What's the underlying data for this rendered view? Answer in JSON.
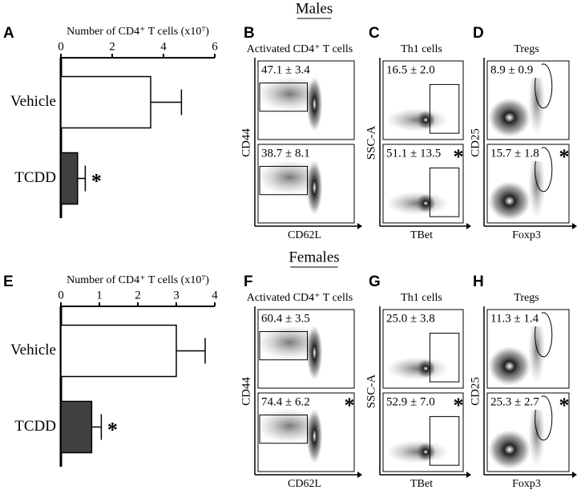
{
  "chart_data": [
    {
      "type": "bar",
      "orientation": "horizontal",
      "letter": "A",
      "title": "Number of CD4⁺ T cells (x10⁷)",
      "categories": [
        "Vehicle",
        "TCDD"
      ],
      "values": [
        3.5,
        0.65
      ],
      "errors": [
        1.2,
        0.3
      ],
      "colors": [
        "#ffffff",
        "#404040"
      ],
      "annotations": [
        null,
        "*"
      ],
      "xlim": [
        0,
        6
      ],
      "xticks": [
        0,
        2,
        4,
        6
      ]
    },
    {
      "type": "bar",
      "orientation": "horizontal",
      "letter": "E",
      "title": "Number of CD4⁺ T cells (x10⁷)",
      "categories": [
        "Vehicle",
        "TCDD"
      ],
      "values": [
        3.0,
        0.8
      ],
      "errors": [
        0.75,
        0.25
      ],
      "colors": [
        "#ffffff",
        "#404040"
      ],
      "annotations": [
        null,
        "*"
      ],
      "xlim": [
        0,
        4
      ],
      "xticks": [
        0,
        1,
        2,
        3,
        4
      ]
    }
  ],
  "sections": [
    {
      "title": "Males",
      "panels": [
        {
          "letter": "B",
          "title": "Activated CD4⁺ T cells",
          "x_label": "CD62L",
          "y_label": "CD44",
          "gate": "rect-left",
          "top": "47.1 ± 3.4",
          "bottom": "38.7 ± 8.1"
        },
        {
          "letter": "C",
          "title": "Th1 cells",
          "x_label": "TBet",
          "y_label": "SSC-A",
          "gate": "rect-right",
          "top": "16.5 ± 2.0",
          "bottom": "51.1 ± 13.5",
          "bottom_star": "*"
        },
        {
          "letter": "D",
          "title": "Tregs",
          "x_label": "Foxp3",
          "y_label": "CD25",
          "gate": "ellipse",
          "top": "8.9 ± 0.9",
          "bottom": "15.7 ± 1.8",
          "bottom_star": "*"
        }
      ]
    },
    {
      "title": "Females",
      "panels": [
        {
          "letter": "F",
          "title": "Activated CD4⁺ T cells",
          "x_label": "CD62L",
          "y_label": "CD44",
          "gate": "rect-left",
          "top": "60.4 ± 3.5",
          "bottom": "74.4 ± 6.2",
          "bottom_star": "*"
        },
        {
          "letter": "G",
          "title": "Th1 cells",
          "x_label": "TBet",
          "y_label": "SSC-A",
          "gate": "rect-right",
          "top": "25.0 ± 3.8",
          "bottom": "52.9 ± 7.0",
          "bottom_star": "*"
        },
        {
          "letter": "H",
          "title": "Tregs",
          "x_label": "Foxp3",
          "y_label": "CD25",
          "gate": "ellipse",
          "top": "11.3 ± 1.4",
          "bottom": "25.3 ± 2.7",
          "bottom_star": "*"
        }
      ]
    }
  ]
}
